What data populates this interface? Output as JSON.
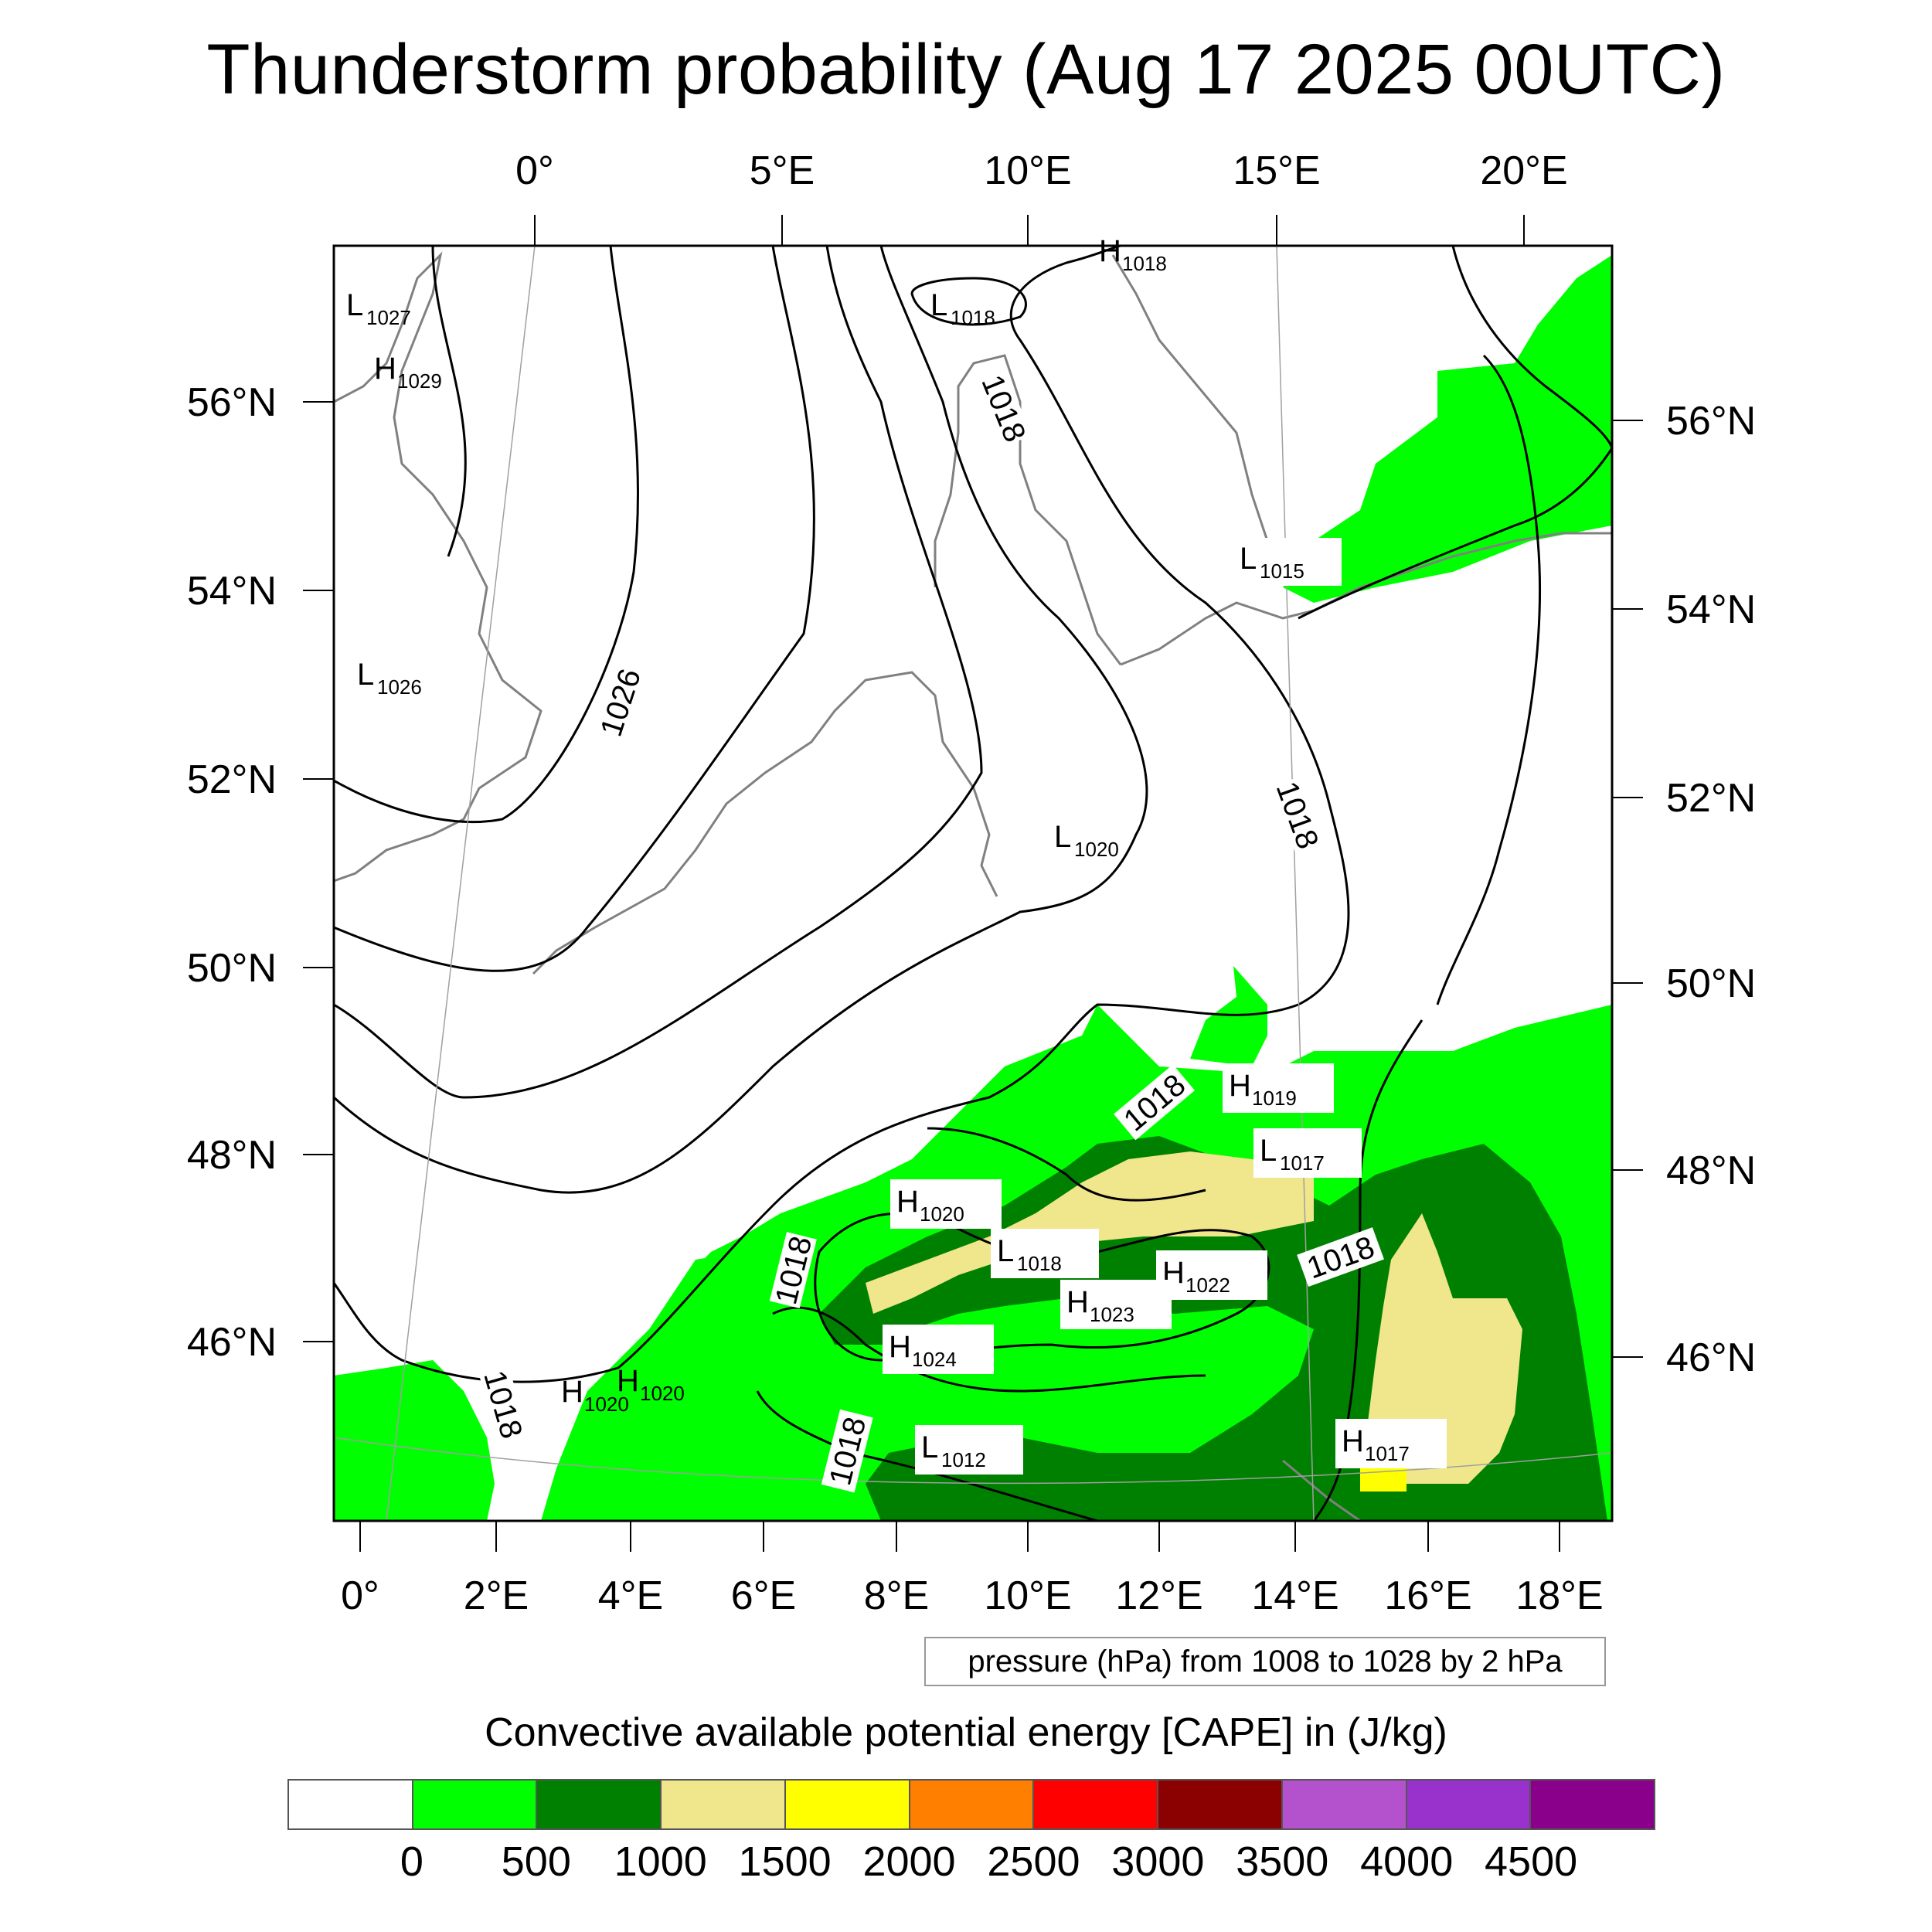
{
  "title": "Thunderstorm probability (Aug 17 2025 00UTC)",
  "top_lon_labels": [
    "0°",
    "5°E",
    "10°E",
    "15°E",
    "20°E"
  ],
  "bottom_lon_labels": [
    "0°",
    "2°E",
    "4°E",
    "6°E",
    "8°E",
    "10°E",
    "12°E",
    "14°E",
    "16°E",
    "18°E"
  ],
  "left_lat_labels": [
    "56°N",
    "54°N",
    "52°N",
    "50°N",
    "48°N",
    "46°N"
  ],
  "right_lat_labels": [
    "56°N",
    "54°N",
    "52°N",
    "50°N",
    "48°N",
    "46°N"
  ],
  "isobar_labels": [
    "1026",
    "1018",
    "1018",
    "1018",
    "1018",
    "1018",
    "1018",
    "1018"
  ],
  "pressure_centers": [
    {
      "type": "L",
      "value": "1027"
    },
    {
      "type": "H",
      "value": "1029"
    },
    {
      "type": "L",
      "value": "1026"
    },
    {
      "type": "L",
      "value": "1018"
    },
    {
      "type": "H",
      "value": "1018"
    },
    {
      "type": "L",
      "value": "1015"
    },
    {
      "type": "L",
      "value": "1020"
    },
    {
      "type": "H",
      "value": "1019"
    },
    {
      "type": "L",
      "value": "1017"
    },
    {
      "type": "H",
      "value": "1020"
    },
    {
      "type": "L",
      "value": "1018"
    },
    {
      "type": "H",
      "value": "1022"
    },
    {
      "type": "H",
      "value": "1023"
    },
    {
      "type": "H",
      "value": "1024"
    },
    {
      "type": "H",
      "value": "1020"
    },
    {
      "type": "H",
      "value": "1020"
    },
    {
      "type": "L",
      "value": "1012"
    },
    {
      "type": "H",
      "value": "1017"
    }
  ],
  "pressure_note": "pressure (hPa) from 1008 to 1028 by 2 hPa",
  "colorbar": {
    "title": "Convective available potential energy [CAPE] in (J/kg)",
    "labels": [
      "0",
      "500",
      "1000",
      "1500",
      "2000",
      "2500",
      "3000",
      "3500",
      "4000",
      "4500"
    ],
    "colors": [
      "#ffffff",
      "#00ff00",
      "#008000",
      "#f0e68c",
      "#ffff00",
      "#ff8000",
      "#ff0000",
      "#8b0000",
      "#b452cd",
      "#9932cc",
      "#8b008b"
    ]
  }
}
